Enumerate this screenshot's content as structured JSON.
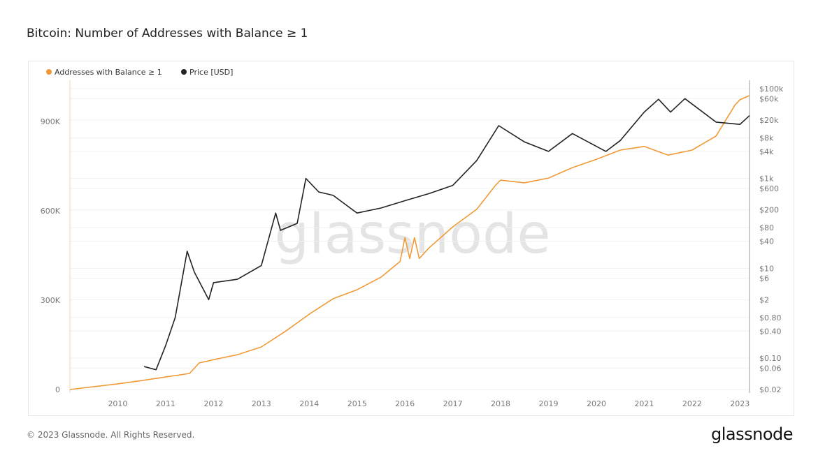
{
  "chart_data": {
    "type": "line",
    "title": "Bitcoin: Number of Addresses with Balance ≥ 1",
    "legend_placement": "top-left",
    "grid": true,
    "x_ticks": [
      "2010",
      "2011",
      "2012",
      "2013",
      "2014",
      "2015",
      "2016",
      "2017",
      "2018",
      "2019",
      "2020",
      "2021",
      "2022",
      "2023"
    ],
    "xlim": [
      2009.0,
      2023.2
    ],
    "y_left": {
      "ticks": [
        "0",
        "300K",
        "600K",
        "900K"
      ],
      "tick_values": [
        0,
        300000,
        600000,
        900000
      ],
      "ylim": [
        0,
        1030000
      ]
    },
    "y_right": {
      "scale": "log",
      "ticks": [
        "$100k",
        "$60k",
        "$20k",
        "$8k",
        "$4k",
        "$1k",
        "$600",
        "$200",
        "$80",
        "$40",
        "$10",
        "$6",
        "$2",
        "$0.80",
        "$0.40",
        "$0.10",
        "$0.06",
        "$0.02"
      ],
      "tick_values": [
        100000,
        60000,
        20000,
        8000,
        4000,
        1000,
        600,
        200,
        80,
        40,
        10,
        6,
        2,
        0.8,
        0.4,
        0.1,
        0.06,
        0.02
      ],
      "ylim": [
        0.02,
        100000
      ]
    },
    "series": [
      {
        "name": "Addresses with Balance ≥ 1",
        "color": "#f09a37",
        "axis": "left",
        "x": [
          2009.0,
          2010.0,
          2010.5,
          2011.0,
          2011.5,
          2011.7,
          2012.0,
          2012.5,
          2013.0,
          2013.5,
          2014.0,
          2014.5,
          2015.0,
          2015.5,
          2015.9,
          2016.0,
          2016.1,
          2016.2,
          2016.3,
          2016.5,
          2017.0,
          2017.5,
          2017.9,
          2018.0,
          2018.5,
          2019.0,
          2019.5,
          2020.0,
          2020.5,
          2021.0,
          2021.5,
          2022.0,
          2022.5,
          2022.9,
          2023.0,
          2023.2
        ],
        "y": [
          0,
          19000,
          30000,
          42000,
          54000,
          89000,
          100000,
          117000,
          143000,
          195000,
          253000,
          305000,
          335000,
          377000,
          430000,
          510000,
          440000,
          510000,
          440000,
          475000,
          546000,
          605000,
          687000,
          703000,
          694000,
          710000,
          745000,
          773000,
          804000,
          816000,
          787000,
          804000,
          851000,
          956000,
          973000,
          987000
        ]
      },
      {
        "name": "Price [USD]",
        "color": "#222222",
        "axis": "right",
        "x": [
          2010.55,
          2010.8,
          2011.0,
          2011.2,
          2011.45,
          2011.6,
          2011.9,
          2012.0,
          2012.5,
          2013.0,
          2013.3,
          2013.4,
          2013.75,
          2013.93,
          2014.2,
          2014.5,
          2015.0,
          2015.5,
          2016.0,
          2016.5,
          2017.0,
          2017.5,
          2017.96,
          2018.5,
          2019.0,
          2019.5,
          2020.2,
          2020.5,
          2021.0,
          2021.3,
          2021.55,
          2021.85,
          2022.5,
          2023.0,
          2023.2
        ],
        "y": [
          0.065,
          0.055,
          0.19,
          0.8,
          24,
          8.2,
          2.0,
          4.8,
          5.7,
          11.5,
          170,
          70,
          100,
          1000,
          500,
          420,
          170,
          220,
          320,
          460,
          700,
          2500,
          15000,
          6500,
          4000,
          10000,
          4000,
          7000,
          30000,
          58000,
          30000,
          60000,
          18000,
          16000,
          25000
        ]
      }
    ]
  },
  "watermark": "glassnode",
  "footer": {
    "copyright": "© 2023 Glassnode. All Rights Reserved.",
    "logo": "glassnode"
  }
}
